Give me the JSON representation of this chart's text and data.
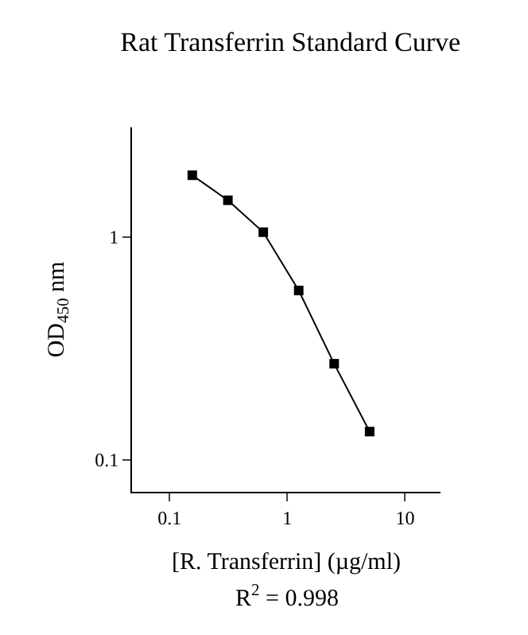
{
  "chart_data": {
    "type": "line",
    "title": "Rat Transferrin Standard Curve",
    "xlabel": "[R. Transferrin] (µg/ml)",
    "ylabel": "OD$_{450}$ nm",
    "annotations": [
      "R$^{2}$ = 0.998"
    ],
    "x": [
      0.156,
      0.313,
      0.625,
      1.25,
      2.5,
      5
    ],
    "series": [
      {
        "color": "#000000",
        "values": [
          1.89,
          1.46,
          1.05,
          0.575,
          0.27,
          0.134
        ]
      }
    ],
    "log": "xy",
    "xlim": [
      0.048,
      20
    ],
    "ylim": [
      0.072,
      3.1
    ],
    "xticks": [
      0.1,
      1,
      10
    ],
    "yticks": [
      0.1,
      1
    ],
    "legend": false,
    "marker": "square",
    "line_style": "solid"
  }
}
